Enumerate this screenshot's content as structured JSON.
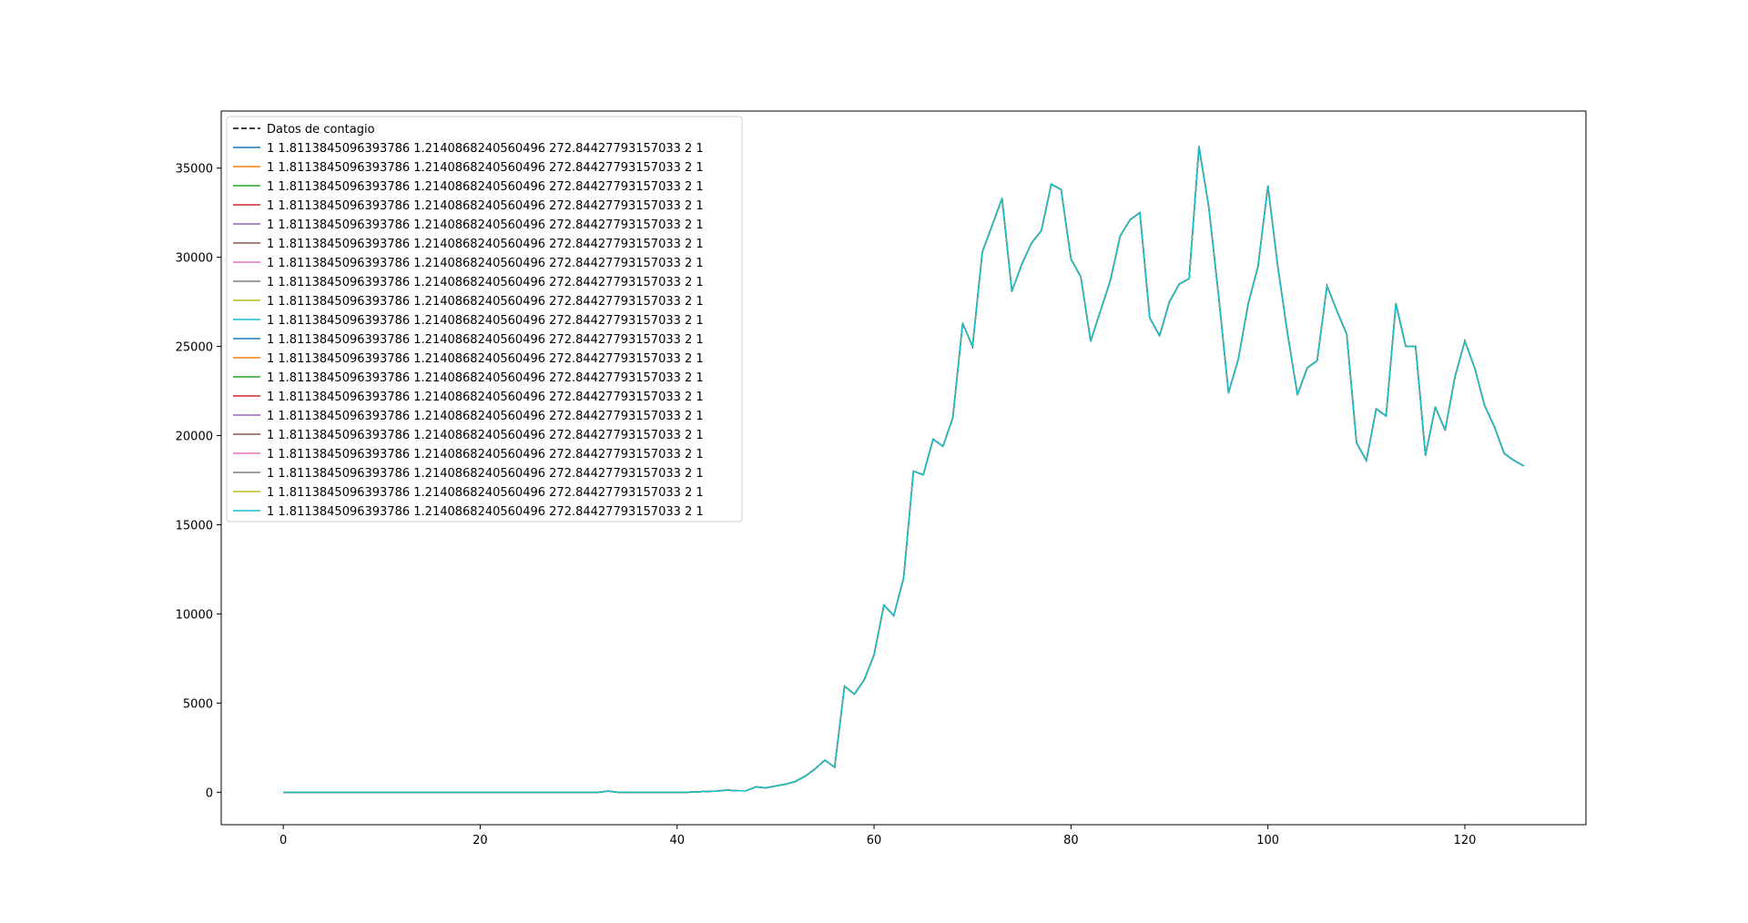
{
  "chart_data": {
    "type": "line",
    "title": "",
    "xlabel": "",
    "ylabel": "",
    "xlim": [
      -6.3,
      132.3
    ],
    "ylim": [
      -1820,
      38200
    ],
    "xticks": [
      0,
      20,
      40,
      60,
      80,
      100,
      120
    ],
    "yticks": [
      0,
      5000,
      10000,
      15000,
      20000,
      25000,
      30000,
      35000
    ],
    "grid": false,
    "legend_position": "upper-left",
    "x": [
      0,
      1,
      2,
      3,
      4,
      5,
      6,
      7,
      8,
      9,
      10,
      11,
      12,
      13,
      14,
      15,
      16,
      17,
      18,
      19,
      20,
      21,
      22,
      23,
      24,
      25,
      26,
      27,
      28,
      29,
      30,
      31,
      32,
      33,
      34,
      35,
      36,
      37,
      38,
      39,
      40,
      41,
      42,
      43,
      44,
      45,
      46,
      47,
      48,
      49,
      50,
      51,
      52,
      53,
      54,
      55,
      56,
      57,
      58,
      59,
      60,
      61,
      62,
      63,
      64,
      65,
      66,
      67,
      68,
      69,
      70,
      71,
      72,
      73,
      74,
      75,
      76,
      77,
      78,
      79,
      80,
      81,
      82,
      83,
      84,
      85,
      86,
      87,
      88,
      89,
      90,
      91,
      92,
      93,
      94,
      95,
      96,
      97,
      98,
      99,
      100,
      101,
      102,
      103,
      104,
      105,
      106,
      107,
      108,
      109,
      110,
      111,
      112,
      113,
      114,
      115,
      116,
      117,
      118,
      119,
      120,
      121,
      122,
      123,
      124,
      125,
      126
    ],
    "reference_series": {
      "name": "Datos de contagio",
      "style": "dashed",
      "color": "#000000",
      "values": [
        0,
        0,
        0,
        0,
        0,
        0,
        0,
        0,
        0,
        0,
        0,
        0,
        0,
        0,
        0,
        0,
        0,
        0,
        0,
        0,
        0,
        0,
        0,
        0,
        0,
        0,
        0,
        0,
        0,
        0,
        0,
        0,
        0,
        60,
        0,
        0,
        0,
        0,
        0,
        0,
        0,
        0,
        20,
        50,
        60,
        120,
        90,
        80,
        300,
        250,
        350,
        450,
        600,
        900,
        1300,
        1800,
        1400,
        5950,
        5500,
        6300,
        7700,
        10500,
        9900,
        12000,
        18000,
        17800,
        19800,
        19400,
        21000,
        26300,
        25000,
        30300,
        31800,
        33300,
        28100,
        29600,
        30800,
        31500,
        34100,
        33800,
        29900,
        28900,
        25300,
        27000,
        28700,
        31200,
        32100,
        32500,
        26600,
        25600,
        27500,
        28500,
        28800,
        36200,
        32800,
        27800,
        22400,
        24300,
        27400,
        29500,
        34000,
        29500,
        25700,
        22300,
        23800,
        24200,
        28400,
        27000,
        25700,
        19600,
        18600,
        21500,
        21100,
        27400,
        25000,
        25000,
        18900,
        21600,
        20300,
        23300,
        25300,
        23800,
        21700,
        20500,
        19000,
        18600,
        18300
      ]
    },
    "series_label": "1 1.8113845096393786 1.2140868240560496 272.84427793157033 2 1",
    "series_colors": [
      "#1f77b4",
      "#ff7f0e",
      "#2ca02c",
      "#d62728",
      "#9467bd",
      "#8c564b",
      "#e377c2",
      "#7f7f7f",
      "#bcbd22",
      "#17becf",
      "#1f77b4",
      "#ff7f0e",
      "#2ca02c",
      "#d62728",
      "#9467bd",
      "#8c564b",
      "#e377c2",
      "#7f7f7f",
      "#bcbd22",
      "#17becf"
    ],
    "series_note": "All 20 model series share identical values (overlapping the data curve)"
  }
}
